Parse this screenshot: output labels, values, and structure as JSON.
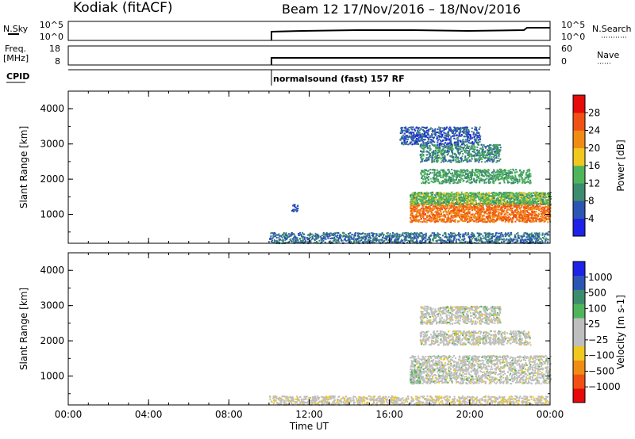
{
  "header": {
    "station": "Kodiak (fitACF)",
    "beam_date": "Beam 12  17/Nov/2016 – 18/Nov/2016"
  },
  "aux_panels": {
    "nsky_label": "N.Sky",
    "nsky_ticks": [
      "10^5",
      "10^0"
    ],
    "nsearch_label": "N.Search",
    "nsearch_ticks": [
      "10^5",
      "10^0"
    ],
    "freq_label_1": "Freq.",
    "freq_label_2": "[MHz]",
    "freq_ticks": [
      "18",
      "8"
    ],
    "nave_label": "Nave",
    "nave_ticks": [
      "60",
      "0"
    ],
    "cpid_label": "CPID",
    "cpid_text": "normalsound (fast) 157 RF"
  },
  "colors": {
    "power_scale": [
      "#1e22e6",
      "#2d55b4",
      "#3c8c6e",
      "#50b45a",
      "#f0c81e",
      "#f08c14",
      "#f05014",
      "#e60a0a"
    ],
    "velocity_scale": [
      "#e60a0a",
      "#f05014",
      "#f08c14",
      "#f0c81e",
      "#bebebe",
      "#bebebe",
      "#50b45a",
      "#3c8c6e",
      "#2d55b4",
      "#1e22e6"
    ]
  },
  "chart_data": [
    {
      "type": "heatmap",
      "title": "",
      "xlabel": "",
      "ylabel": "Slant Range [km]",
      "xlim": [
        0,
        24
      ],
      "ylim": [
        180,
        4500
      ],
      "x_ticks": [
        "00:00",
        "04:00",
        "08:00",
        "12:00",
        "16:00",
        "20:00",
        "00:00"
      ],
      "y_ticks": [
        1000,
        2000,
        3000,
        4000
      ],
      "colorbar_label": "Power [dB]",
      "colorbar_ticks": [
        "28",
        "24",
        "20",
        "16",
        "12",
        "8",
        "4"
      ],
      "colorbar_range": [
        0,
        32
      ],
      "regions": [
        {
          "name": "ground-scatter",
          "x": [
            10.0,
            23.9
          ],
          "y": [
            200,
            500
          ],
          "value": 8
        },
        {
          "name": "near-range-patch",
          "x": [
            11.1,
            11.4
          ],
          "y": [
            1100,
            1300
          ],
          "value": 6
        },
        {
          "name": "main-echo-low",
          "x": [
            17.0,
            24.0
          ],
          "y": [
            800,
            1350
          ],
          "value": 24
        },
        {
          "name": "main-echo-upper",
          "x": [
            17.0,
            24.0
          ],
          "y": [
            1300,
            1650
          ],
          "value": 14
        },
        {
          "name": "band-2000",
          "x": [
            17.5,
            23.0
          ],
          "y": [
            1900,
            2300
          ],
          "value": 12
        },
        {
          "name": "band-2700",
          "x": [
            17.5,
            21.5
          ],
          "y": [
            2500,
            3000
          ],
          "value": 10
        },
        {
          "name": "sparse-upper",
          "x": [
            16.5,
            20.5
          ],
          "y": [
            3000,
            3500
          ],
          "value": 6
        }
      ]
    },
    {
      "type": "heatmap",
      "title": "",
      "xlabel": "Time UT",
      "ylabel": "Slant Range [km]",
      "xlim": [
        0,
        24
      ],
      "ylim": [
        180,
        4500
      ],
      "x_ticks": [
        "00:00",
        "04:00",
        "08:00",
        "12:00",
        "16:00",
        "20:00",
        "00:00"
      ],
      "y_ticks": [
        1000,
        2000,
        3000,
        4000
      ],
      "colorbar_label": "Velocity [m s-1]",
      "colorbar_ticks": [
        "1000",
        "500",
        "100",
        "25",
        "−25",
        "−100",
        "−500",
        "−1000"
      ],
      "colorbar_range": [
        -1250,
        1250
      ],
      "regions": [
        {
          "name": "ground-scatter",
          "x": [
            10.0,
            23.9
          ],
          "y": [
            200,
            450
          ],
          "value": -80
        },
        {
          "name": "main-echo",
          "x": [
            17.0,
            24.0
          ],
          "y": [
            800,
            1600
          ],
          "value": 0
        },
        {
          "name": "band-2000",
          "x": [
            17.5,
            23.0
          ],
          "y": [
            1900,
            2300
          ],
          "value": 0
        },
        {
          "name": "band-2700",
          "x": [
            17.5,
            21.5
          ],
          "y": [
            2500,
            3000
          ],
          "value": 0
        },
        {
          "name": "onset-positive",
          "x": [
            17.0,
            17.5
          ],
          "y": [
            800,
            1200
          ],
          "value": 150
        }
      ]
    }
  ]
}
